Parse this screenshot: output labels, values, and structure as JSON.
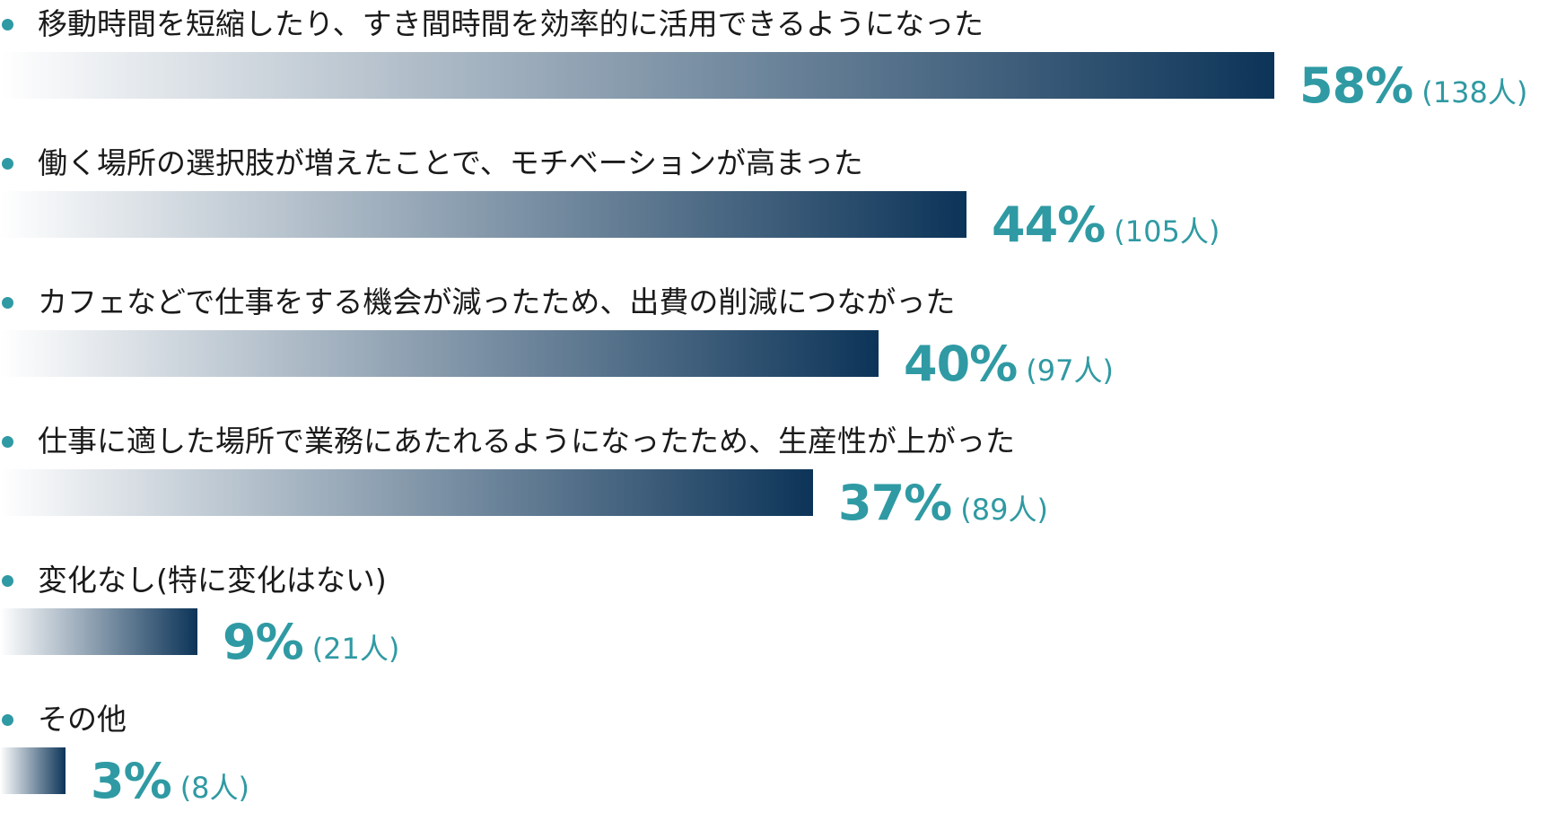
{
  "colors": {
    "bar_dark": "#0c3458",
    "accent_teal": "#2f9aa3",
    "label_text": "#1a1a1a"
  },
  "chart_data": {
    "type": "bar",
    "orientation": "horizontal",
    "categories": [
      "移動時間を短縮したり、すき間時間を効率的に活用できるようになった",
      "働く場所の選択肢が増えたことで、モチベーションが高まった",
      "カフェなどで仕事をする機会が減ったため、出費の削減につながった",
      "仕事に適した場所で業務にあたれるようになったため、生産性が上がった",
      "変化なし(特に変化はない)",
      "その他"
    ],
    "values": [
      58,
      44,
      40,
      37,
      9,
      3
    ],
    "value_labels": [
      "58%",
      "44%",
      "40%",
      "37%",
      "9%",
      "3%"
    ],
    "counts": [
      "(138人)",
      "(105人)",
      "(97人)",
      "(89人)",
      "(21人)",
      "(8人)"
    ],
    "unit": "%",
    "xlim": [
      0,
      58
    ],
    "grid": false,
    "legend": "none"
  }
}
